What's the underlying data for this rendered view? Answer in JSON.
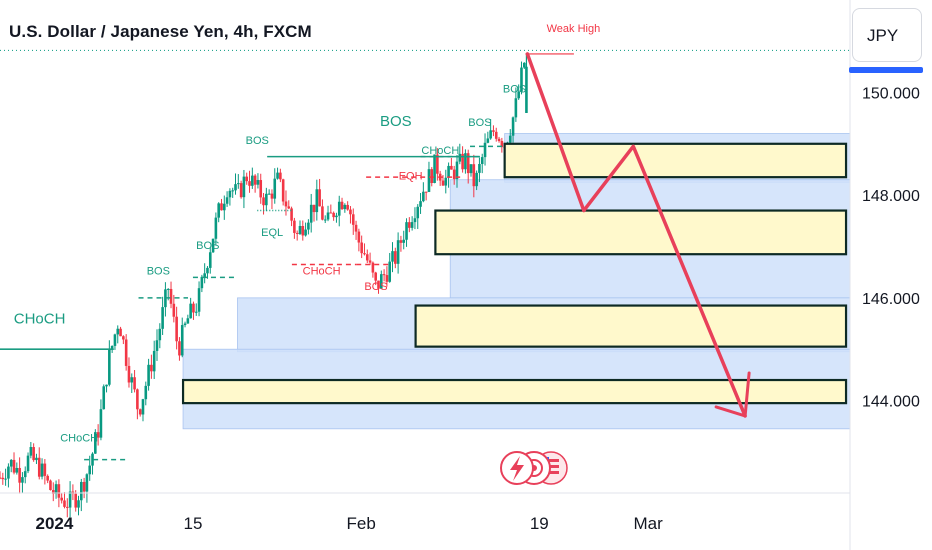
{
  "header": {
    "title": "U.S. Dollar / Japanese Yen, 4h, FXCM",
    "currency_button": "JPY"
  },
  "colors": {
    "up": "#089981",
    "down": "#f23645",
    "zone_fill": "#cfe0fa",
    "box_fill": "#fff9cc",
    "arrow": "#e8405a",
    "structure": "#1a9c82"
  },
  "chart_data": {
    "type": "candlestick",
    "symbol": "USDJPY",
    "timeframe": "4h",
    "ylim": [
      142.2,
      151.8
    ],
    "y_ticks": [
      {
        "value": 150,
        "label": "150.000"
      },
      {
        "value": 148,
        "label": "148.000"
      },
      {
        "value": 146,
        "label": "146.000"
      },
      {
        "value": 144,
        "label": "144.000"
      }
    ],
    "x_ticks": [
      {
        "day": 0,
        "label": "2024"
      },
      {
        "day": 14,
        "label": "15"
      },
      {
        "day": 31,
        "label": "Feb"
      },
      {
        "day": 49,
        "label": "19"
      },
      {
        "day": 60,
        "label": "Mar"
      }
    ],
    "x_range_days": [
      -5.5,
      80.4
    ],
    "price_path": [
      [
        -5.5,
        142.5
      ],
      [
        -4.5,
        142.8
      ],
      [
        -3.5,
        142.6
      ],
      [
        -2.5,
        142.9
      ],
      [
        -1.5,
        142.7
      ],
      [
        -0.5,
        142.3
      ],
      [
        0.5,
        142.1
      ],
      [
        1.5,
        142.0
      ],
      [
        2.5,
        142.2
      ],
      [
        3.5,
        142.7
      ],
      [
        4.5,
        143.5
      ],
      [
        5.5,
        144.8
      ],
      [
        6.5,
        145.6
      ],
      [
        7.5,
        144.6
      ],
      [
        8.5,
        143.8
      ],
      [
        9.5,
        144.5
      ],
      [
        10.5,
        145.3
      ],
      [
        11.5,
        146.2
      ],
      [
        12.5,
        145.0
      ],
      [
        13.5,
        145.6
      ],
      [
        14.5,
        145.9
      ],
      [
        15.5,
        146.8
      ],
      [
        16.5,
        147.6
      ],
      [
        17.5,
        148.2
      ],
      [
        18.5,
        148.0
      ],
      [
        19.5,
        148.4
      ],
      [
        20.5,
        148.1
      ],
      [
        21.5,
        147.9
      ],
      [
        22.5,
        148.3
      ],
      [
        23.5,
        147.8
      ],
      [
        24.5,
        147.2
      ],
      [
        25.5,
        147.6
      ],
      [
        26.5,
        147.9
      ],
      [
        27.5,
        147.4
      ],
      [
        28.5,
        147.8
      ],
      [
        29.5,
        148.0
      ],
      [
        30.5,
        147.2
      ],
      [
        31.5,
        146.8
      ],
      [
        32.5,
        146.2
      ],
      [
        33.5,
        146.5
      ],
      [
        34.5,
        146.8
      ],
      [
        35.5,
        147.4
      ],
      [
        36.5,
        147.8
      ],
      [
        37.5,
        148.2
      ],
      [
        38.5,
        148.6
      ],
      [
        39.5,
        148.3
      ],
      [
        40.5,
        148.5
      ],
      [
        41.5,
        148.7
      ],
      [
        42.5,
        148.2
      ],
      [
        43.5,
        148.9
      ],
      [
        44.5,
        149.3
      ],
      [
        45.5,
        149.0
      ],
      [
        46.5,
        149.6
      ],
      [
        47.5,
        150.6
      ]
    ],
    "zones": [
      {
        "x_start": 45.5,
        "x_end": 80.4,
        "y_low": 148.25,
        "y_high": 149.2
      },
      {
        "x_start": 40.0,
        "x_end": 80.4,
        "y_low": 146.0,
        "y_high": 148.3
      },
      {
        "x_start": 18.5,
        "x_end": 80.4,
        "y_low": 144.95,
        "y_high": 146.0
      },
      {
        "x_start": 13.0,
        "x_end": 80.4,
        "y_low": 143.45,
        "y_high": 145.0
      }
    ],
    "boxes": [
      {
        "x_start": 45.5,
        "x_end": 80.0,
        "y_low": 148.35,
        "y_high": 149.0
      },
      {
        "x_start": 38.5,
        "x_end": 80.0,
        "y_low": 146.85,
        "y_high": 147.7
      },
      {
        "x_start": 36.5,
        "x_end": 80.0,
        "y_low": 145.05,
        "y_high": 145.85
      },
      {
        "x_start": 13.0,
        "x_end": 80.0,
        "y_low": 143.95,
        "y_high": 144.4
      }
    ],
    "projection_path": [
      [
        47.8,
        150.75
      ],
      [
        53.5,
        147.7
      ],
      [
        58.5,
        148.95
      ],
      [
        69.8,
        143.7
      ]
    ],
    "weak_high": {
      "label": "Weak High",
      "value": 150.75,
      "x_start": 47.6,
      "x_end": 52.5
    },
    "structure_lines": [
      {
        "label": "CHoCH",
        "type": "solid",
        "y": 145.0,
        "x_start": -5.5,
        "x_end": 6.0
      },
      {
        "label": "CHoCH",
        "type": "dashed",
        "y": 142.85,
        "x_start": 3.0,
        "x_end": 7.5
      },
      {
        "label": "BOS",
        "type": "dashed",
        "y": 146.0,
        "x_start": 8.5,
        "x_end": 13.5
      },
      {
        "label": "BOS",
        "type": "dashed",
        "y": 146.4,
        "x_start": 14.0,
        "x_end": 18.5
      },
      {
        "label": "BOS",
        "type": "solid",
        "y": 148.75,
        "x_start": 21.5,
        "x_end": 43.0
      },
      {
        "label": "CHoCH",
        "type": "dashed",
        "y": 148.75,
        "x_start": 37.0,
        "x_end": 43.0
      },
      {
        "label": "EQH",
        "type": "dashed",
        "y": 148.35,
        "x_start": 31.5,
        "x_end": 41.0
      },
      {
        "label": "EQL",
        "type": "dotted",
        "y": 147.7,
        "x_start": 20.5,
        "x_end": 24.0
      },
      {
        "label": "CHoCH",
        "type": "dashed",
        "y": 146.65,
        "x_start": 24.0,
        "x_end": 30.5
      },
      {
        "label": "BOS",
        "type": "dashed",
        "y": 146.65,
        "x_start": 30.5,
        "x_end": 34.0
      },
      {
        "label": "BOS",
        "type": "dashed",
        "y": 148.95,
        "x_start": 42.0,
        "x_end": 45.5
      },
      {
        "label": "BOS",
        "type": "none",
        "y": 149.5,
        "x_start": 45.5,
        "x_end": 46.5
      }
    ],
    "labels": [
      {
        "text": "CHoCH",
        "x": -1.5,
        "y": 145.5,
        "color": "structure",
        "size": 15
      },
      {
        "text": "CHoCH",
        "x": 2.5,
        "y": 143.2,
        "color": "structure",
        "size": 11
      },
      {
        "text": "BOS",
        "x": 10.5,
        "y": 146.45,
        "color": "structure",
        "size": 11
      },
      {
        "text": "BOS",
        "x": 15.5,
        "y": 146.95,
        "color": "structure",
        "size": 11
      },
      {
        "text": "BOS",
        "x": 20.5,
        "y": 149.0,
        "color": "structure",
        "size": 11
      },
      {
        "text": "BOS",
        "x": 34.5,
        "y": 149.35,
        "color": "structure",
        "size": 15
      },
      {
        "text": "CHoCH",
        "x": 39.0,
        "y": 148.8,
        "color": "structure",
        "size": 11
      },
      {
        "text": "EQH",
        "x": 36.0,
        "y": 148.3,
        "color": "down",
        "size": 11
      },
      {
        "text": "EQL",
        "x": 22.0,
        "y": 147.2,
        "color": "structure",
        "size": 11
      },
      {
        "text": "CHoCH",
        "x": 27.0,
        "y": 146.45,
        "color": "down",
        "size": 11
      },
      {
        "text": "BOS",
        "x": 32.5,
        "y": 146.15,
        "color": "down",
        "size": 11
      },
      {
        "text": "BOS",
        "x": 43.0,
        "y": 149.35,
        "color": "structure",
        "size": 11
      },
      {
        "text": "BOS",
        "x": 46.5,
        "y": 150.0,
        "color": "structure",
        "size": 11
      }
    ]
  }
}
